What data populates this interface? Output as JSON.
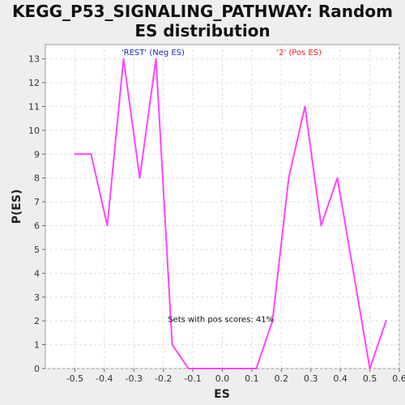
{
  "title_line1": "KEGG_P53_SIGNALING_PATHWAY: Random",
  "title_line2": "ES distribution",
  "chart_data": {
    "type": "line",
    "xlabel": "ES",
    "ylabel": "P(ES)",
    "xlim": [
      -0.6,
      0.6
    ],
    "ylim": [
      0,
      13.6
    ],
    "x_ticks": [
      -0.5,
      -0.4,
      -0.3,
      -0.2,
      -0.1,
      0.0,
      0.1,
      0.2,
      0.3,
      0.4,
      0.5,
      0.6
    ],
    "x_tick_labels": [
      "-0.5",
      "-0.4",
      "-0.3",
      "-0.2",
      "-0.1",
      "0.0",
      "0.1",
      "0.2",
      "0.3",
      "0.4",
      "0.5",
      "0.6"
    ],
    "y_ticks": [
      0,
      1,
      2,
      3,
      4,
      5,
      6,
      7,
      8,
      9,
      10,
      11,
      12,
      13
    ],
    "grid": true,
    "line_color": "#ff44ff",
    "series": [
      {
        "x": [
          -0.5,
          -0.445,
          -0.39,
          -0.335,
          -0.28,
          -0.225,
          -0.17,
          -0.115,
          -0.06,
          -0.005,
          0.05,
          0.115,
          0.17,
          0.225,
          0.28,
          0.335,
          0.39,
          0.445,
          0.5,
          0.555
        ],
        "values": [
          9,
          9,
          6,
          13,
          8,
          13,
          1,
          0,
          0,
          0,
          0,
          0,
          2,
          8,
          11,
          6,
          8,
          4,
          0,
          2
        ]
      }
    ],
    "annotations": [
      {
        "text": "'REST' (Neg ES)",
        "color": "#2222cc",
        "x": -0.235,
        "y": 13.15
      },
      {
        "text": "'2' (Pos ES)",
        "color": "#ee2222",
        "x": 0.26,
        "y": 13.15
      },
      {
        "text": "Sets with pos scores: 41%",
        "color": "#111111",
        "x": -0.005,
        "y": 1.95
      }
    ]
  }
}
